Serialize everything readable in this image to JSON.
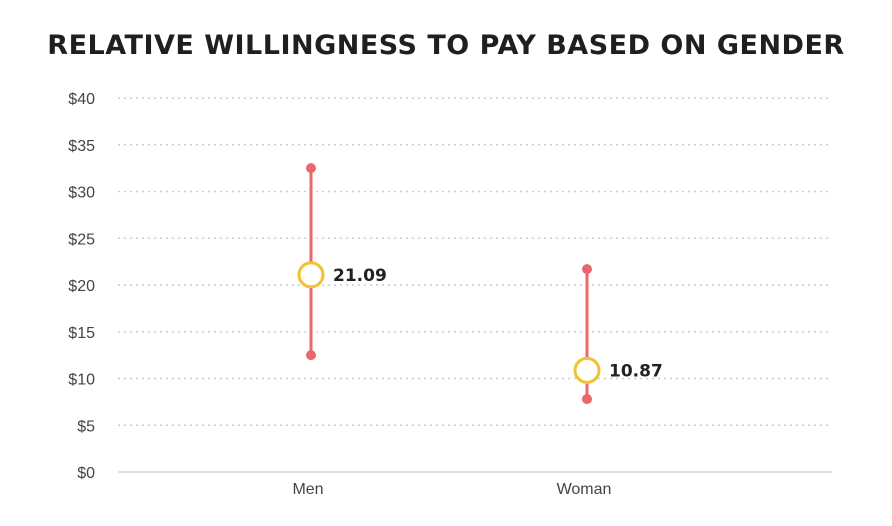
{
  "chart_data": {
    "type": "range-point",
    "title": "RELATIVE WILLINGNESS TO PAY BASED ON GENDER",
    "xlabel": "",
    "ylabel": "",
    "ylim": [
      0,
      40
    ],
    "yticks": [
      0,
      5,
      10,
      15,
      20,
      25,
      30,
      35,
      40
    ],
    "ytick_labels": [
      "$0",
      "$5",
      "$10",
      "$15",
      "$20",
      "$25",
      "$30",
      "$35",
      "$40"
    ],
    "grid": true,
    "categories": [
      "Men",
      "Woman"
    ],
    "series": [
      {
        "name": "mean",
        "values": [
          21.09,
          10.87
        ],
        "labels": [
          "21.09",
          "10.87"
        ]
      },
      {
        "name": "high",
        "values": [
          32.5,
          21.7
        ]
      },
      {
        "name": "low",
        "values": [
          12.5,
          7.8
        ]
      }
    ],
    "colors": {
      "range": "#e8686b",
      "mean_marker": "#f2c12e",
      "grid": "#cccccc",
      "axis": "#d6d6d6"
    }
  }
}
